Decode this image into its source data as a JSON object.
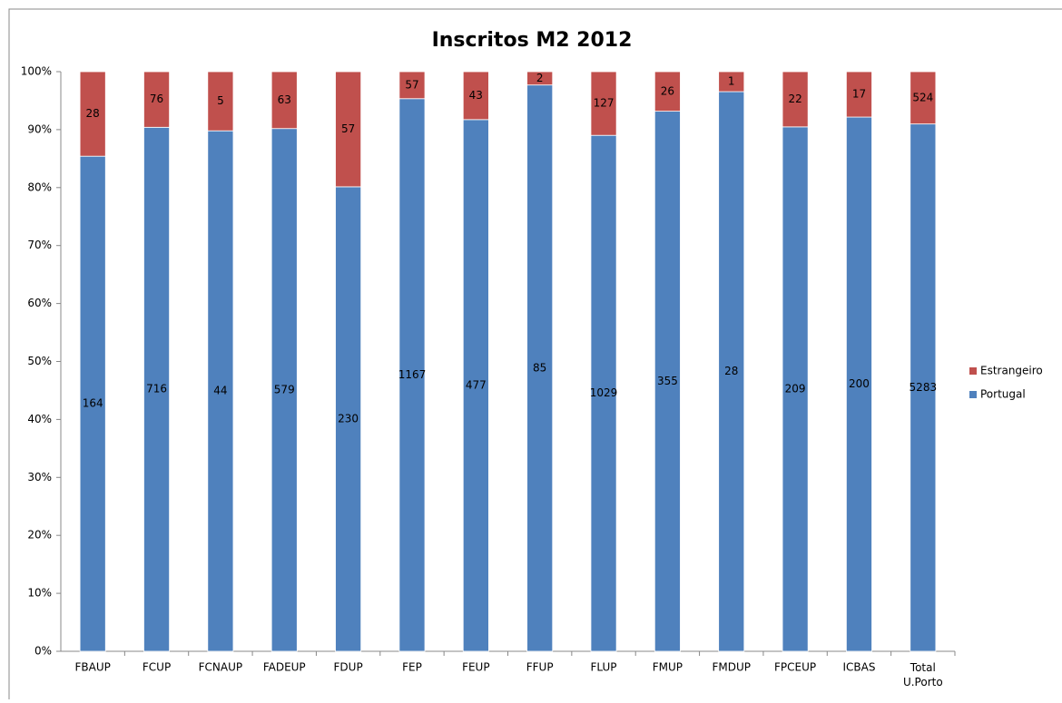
{
  "chart_data": {
    "type": "bar",
    "stacked": "percent",
    "title": "Inscritos M2 2012",
    "categories": [
      "FBAUP",
      "FCUP",
      "FCNAUP",
      "FADEUP",
      "FDUP",
      "FEP",
      "FEUP",
      "FFUP",
      "FLUP",
      "FMUP",
      "FMDUP",
      "FPCEUP",
      "ICBAS",
      "Total U.Porto"
    ],
    "series": [
      {
        "name": "Portugal",
        "color": "#4f81bd",
        "values": [
          164,
          716,
          44,
          579,
          230,
          1167,
          477,
          85,
          1029,
          355,
          28,
          209,
          200,
          5283
        ]
      },
      {
        "name": "Estrangeiro",
        "color": "#c0504d",
        "values": [
          28,
          76,
          5,
          63,
          57,
          57,
          43,
          2,
          127,
          26,
          1,
          22,
          17,
          524
        ]
      }
    ],
    "ylim": [
      0,
      100
    ],
    "yticks": [
      {
        "value": 0,
        "label": "0%"
      },
      {
        "value": 10,
        "label": "10%"
      },
      {
        "value": 20,
        "label": "20%"
      },
      {
        "value": 30,
        "label": "30%"
      },
      {
        "value": 40,
        "label": "40%"
      },
      {
        "value": 50,
        "label": "50%"
      },
      {
        "value": 60,
        "label": "60%"
      },
      {
        "value": 70,
        "label": "70%"
      },
      {
        "value": 80,
        "label": "80%"
      },
      {
        "value": 90,
        "label": "90%"
      },
      {
        "value": 100,
        "label": "100%"
      }
    ],
    "legend": "right"
  }
}
